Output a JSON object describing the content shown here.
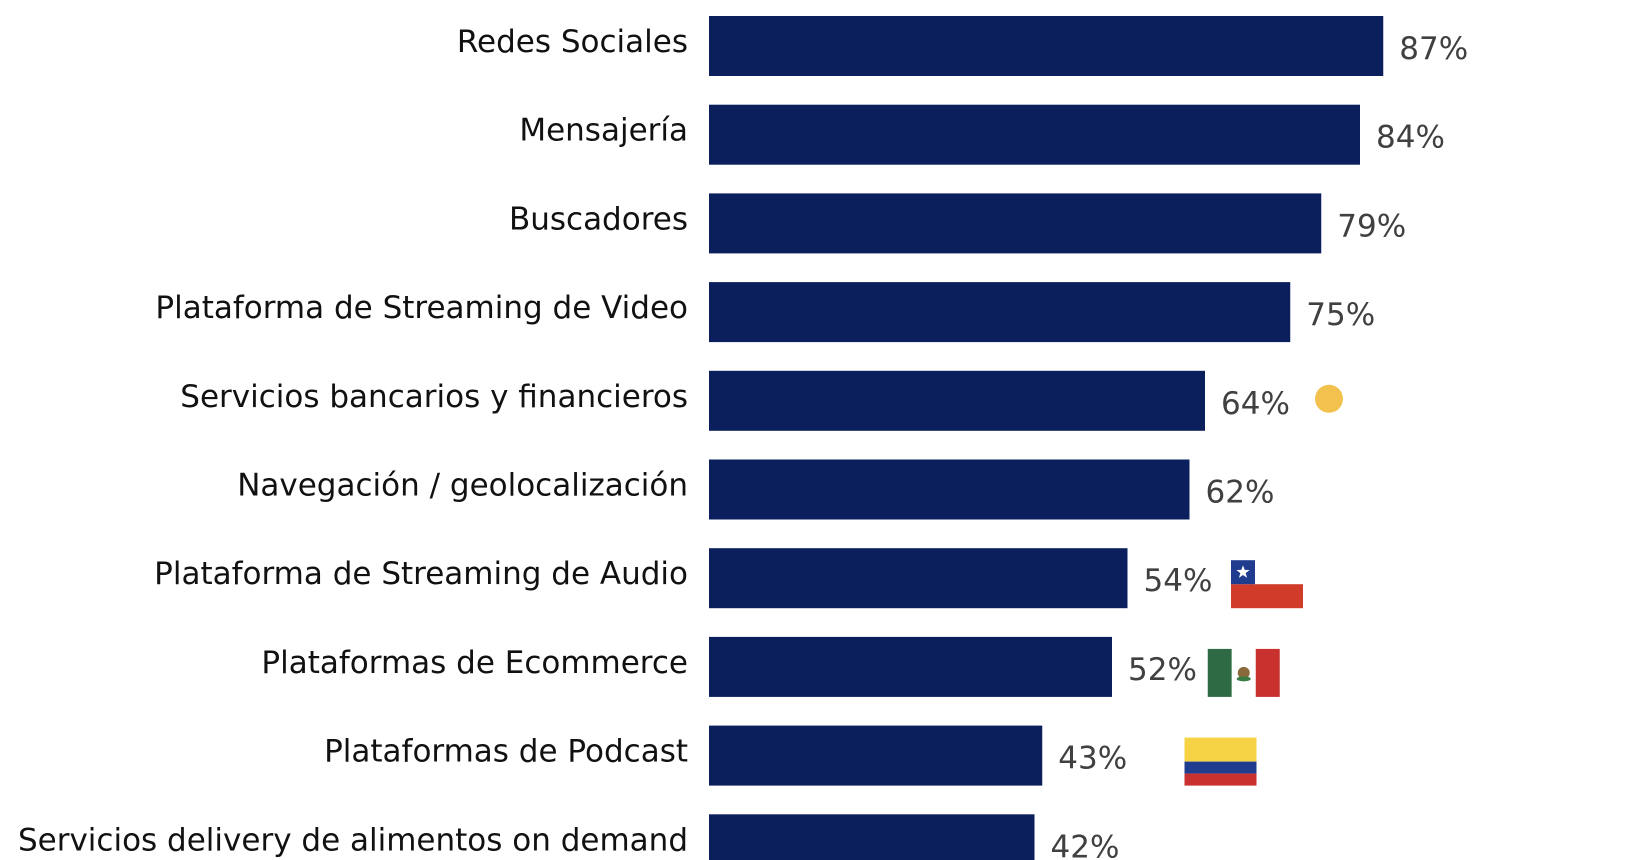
{
  "chart_data": {
    "type": "bar",
    "orientation": "horizontal",
    "categories": [
      "Redes Sociales",
      "Mensajería",
      "Buscadores",
      "Plataforma de Streaming de Video",
      "Servicios bancarios y financieros",
      "Navegación / geolocalización",
      "Plataforma de Streaming de Audio",
      "Plataformas de Ecommerce",
      "Plataformas de Podcast",
      "Servicios delivery de alimentos on demand"
    ],
    "values": [
      87,
      84,
      79,
      75,
      64,
      62,
      54,
      52,
      43,
      42
    ],
    "value_labels": [
      "87%",
      "84%",
      "79%",
      "75%",
      "64%",
      "62%",
      "54%",
      "52%",
      "43%",
      "42%"
    ],
    "unit": "%",
    "xlim": [
      0,
      100
    ],
    "grid": false,
    "bar_color": "#0b1f5c",
    "markers": [
      {
        "type": "dot",
        "category_index": 4,
        "value": 80,
        "color": "#f2c14e"
      },
      {
        "type": "flag",
        "name": "chile-flag",
        "category_index": 6,
        "value": 72
      },
      {
        "type": "flag",
        "name": "mexico-flag",
        "category_index": 7,
        "value": 69
      },
      {
        "type": "flag",
        "name": "colombia-flag",
        "category_index": 8,
        "value": 66
      }
    ]
  }
}
